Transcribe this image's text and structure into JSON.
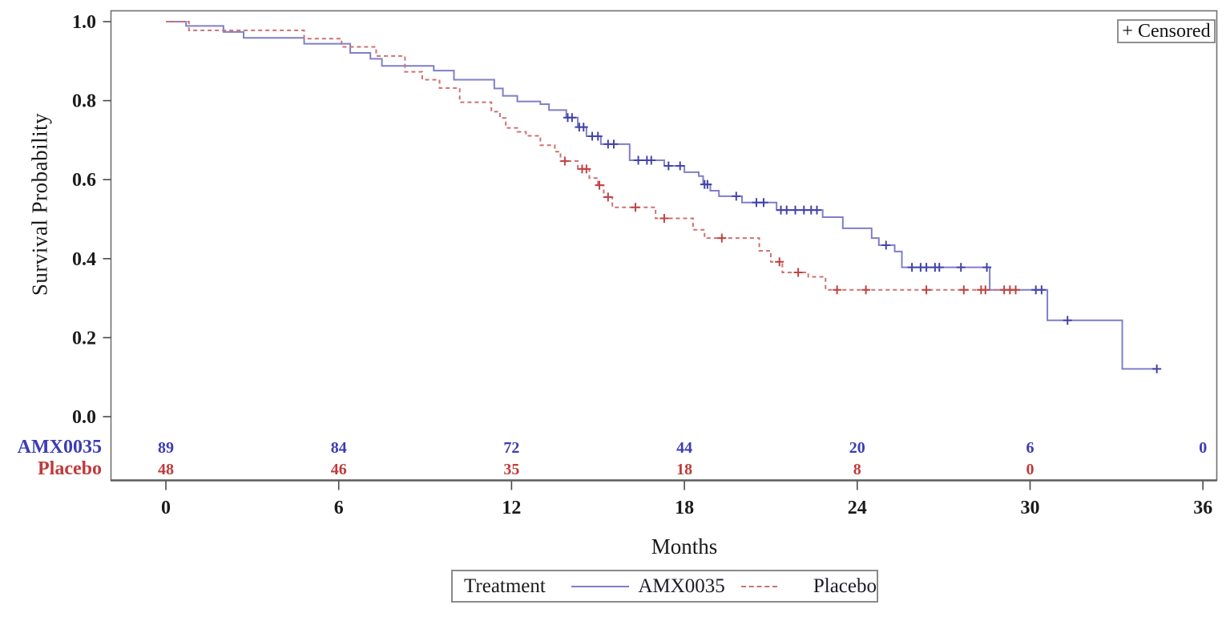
{
  "figure": {
    "censored_label": "+ Censored",
    "legend": {
      "title": "Treatment"
    }
  },
  "chart_data": {
    "type": "line",
    "subtype": "kaplan-meier-step-survival",
    "title": "",
    "xlabel": "Months",
    "ylabel": "Survival Probability",
    "xlim": [
      0,
      36
    ],
    "ylim": [
      0.0,
      1.0
    ],
    "grid": false,
    "legend_position": "bottom",
    "axes": {
      "x_ticks": [
        0,
        6,
        12,
        18,
        24,
        30,
        36
      ],
      "y_tick_labels": [
        "0.0",
        "0.2",
        "0.4",
        "0.6",
        "0.8",
        "1.0"
      ]
    },
    "series": [
      {
        "name": "AMX0035",
        "line_style": "solid",
        "color": "#7f7fc9",
        "censor_color": "#4343ac",
        "text_color": "#3c3cb4",
        "end_x": 34.4,
        "steps": [
          [
            0,
            1.0
          ],
          [
            0.7,
            0.989
          ],
          [
            2.0,
            0.974
          ],
          [
            2.7,
            0.959
          ],
          [
            4.8,
            0.944
          ],
          [
            6.4,
            0.921
          ],
          [
            7.1,
            0.906
          ],
          [
            7.5,
            0.888
          ],
          [
            9.3,
            0.876
          ],
          [
            10.0,
            0.853
          ],
          [
            11.4,
            0.831
          ],
          [
            11.7,
            0.812
          ],
          [
            12.2,
            0.798
          ],
          [
            13.0,
            0.791
          ],
          [
            13.3,
            0.776
          ],
          [
            13.9,
            0.757
          ],
          [
            14.3,
            0.733
          ],
          [
            14.6,
            0.71
          ],
          [
            15.1,
            0.69
          ],
          [
            16.1,
            0.649
          ],
          [
            17.3,
            0.635
          ],
          [
            18.0,
            0.619
          ],
          [
            18.5,
            0.609
          ],
          [
            18.65,
            0.588
          ],
          [
            18.9,
            0.572
          ],
          [
            19.2,
            0.558
          ],
          [
            20.0,
            0.542
          ],
          [
            21.2,
            0.523
          ],
          [
            22.8,
            0.505
          ],
          [
            23.5,
            0.477
          ],
          [
            24.5,
            0.452
          ],
          [
            24.75,
            0.434
          ],
          [
            25.3,
            0.418
          ],
          [
            25.55,
            0.378
          ],
          [
            28.6,
            0.321
          ],
          [
            30.6,
            0.244
          ],
          [
            33.2,
            0.121
          ]
        ],
        "censors": [
          [
            13.95,
            0.757
          ],
          [
            14.1,
            0.757
          ],
          [
            14.35,
            0.733
          ],
          [
            14.5,
            0.733
          ],
          [
            14.8,
            0.71
          ],
          [
            15.0,
            0.71
          ],
          [
            15.35,
            0.69
          ],
          [
            15.55,
            0.69
          ],
          [
            16.4,
            0.649
          ],
          [
            16.7,
            0.649
          ],
          [
            16.85,
            0.649
          ],
          [
            17.45,
            0.635
          ],
          [
            17.85,
            0.635
          ],
          [
            18.7,
            0.588
          ],
          [
            18.8,
            0.588
          ],
          [
            19.8,
            0.558
          ],
          [
            20.5,
            0.542
          ],
          [
            20.75,
            0.542
          ],
          [
            21.35,
            0.523
          ],
          [
            21.55,
            0.523
          ],
          [
            21.85,
            0.523
          ],
          [
            22.15,
            0.523
          ],
          [
            22.4,
            0.523
          ],
          [
            22.6,
            0.523
          ],
          [
            25.0,
            0.434
          ],
          [
            25.9,
            0.378
          ],
          [
            26.2,
            0.378
          ],
          [
            26.4,
            0.378
          ],
          [
            26.7,
            0.378
          ],
          [
            26.85,
            0.378
          ],
          [
            27.6,
            0.378
          ],
          [
            28.5,
            0.378
          ],
          [
            30.2,
            0.321
          ],
          [
            30.4,
            0.321
          ],
          [
            31.3,
            0.244
          ],
          [
            34.4,
            0.121
          ]
        ]
      },
      {
        "name": "Placebo",
        "line_style": "dashed",
        "color": "#cf7171",
        "censor_color": "#bf4242",
        "text_color": "#c03a3a",
        "end_x": 29.5,
        "steps": [
          [
            0,
            1.0
          ],
          [
            0.8,
            0.978
          ],
          [
            4.8,
            0.957
          ],
          [
            6.1,
            0.936
          ],
          [
            7.3,
            0.913
          ],
          [
            8.3,
            0.873
          ],
          [
            8.9,
            0.853
          ],
          [
            9.5,
            0.832
          ],
          [
            10.2,
            0.796
          ],
          [
            11.3,
            0.772
          ],
          [
            11.6,
            0.756
          ],
          [
            11.8,
            0.731
          ],
          [
            12.2,
            0.721
          ],
          [
            12.5,
            0.711
          ],
          [
            13.0,
            0.687
          ],
          [
            13.5,
            0.671
          ],
          [
            13.7,
            0.647
          ],
          [
            14.3,
            0.627
          ],
          [
            14.7,
            0.604
          ],
          [
            15.0,
            0.586
          ],
          [
            15.2,
            0.556
          ],
          [
            15.5,
            0.53
          ],
          [
            17.0,
            0.502
          ],
          [
            18.3,
            0.473
          ],
          [
            18.7,
            0.452
          ],
          [
            20.6,
            0.42
          ],
          [
            21.0,
            0.392
          ],
          [
            21.4,
            0.365
          ],
          [
            22.3,
            0.354
          ],
          [
            22.9,
            0.321
          ]
        ],
        "censors": [
          [
            13.85,
            0.647
          ],
          [
            14.45,
            0.627
          ],
          [
            14.6,
            0.627
          ],
          [
            15.05,
            0.586
          ],
          [
            15.35,
            0.556
          ],
          [
            16.3,
            0.53
          ],
          [
            17.3,
            0.502
          ],
          [
            19.3,
            0.452
          ],
          [
            21.3,
            0.392
          ],
          [
            21.95,
            0.365
          ],
          [
            23.3,
            0.321
          ],
          [
            24.3,
            0.321
          ],
          [
            26.4,
            0.321
          ],
          [
            27.7,
            0.321
          ],
          [
            28.3,
            0.321
          ],
          [
            28.45,
            0.321
          ],
          [
            29.1,
            0.321
          ],
          [
            29.3,
            0.321
          ],
          [
            29.5,
            0.321
          ]
        ]
      }
    ],
    "at_risk": {
      "times": [
        0,
        6,
        12,
        18,
        24,
        30,
        36
      ],
      "rows": [
        {
          "label": "AMX0035",
          "color": "#3c3cb4",
          "counts": [
            "89",
            "84",
            "72",
            "44",
            "20",
            "6",
            "0"
          ]
        },
        {
          "label": "Placebo",
          "color": "#c03a3a",
          "counts": [
            "48",
            "46",
            "35",
            "18",
            "8",
            "0",
            ""
          ]
        }
      ]
    }
  }
}
